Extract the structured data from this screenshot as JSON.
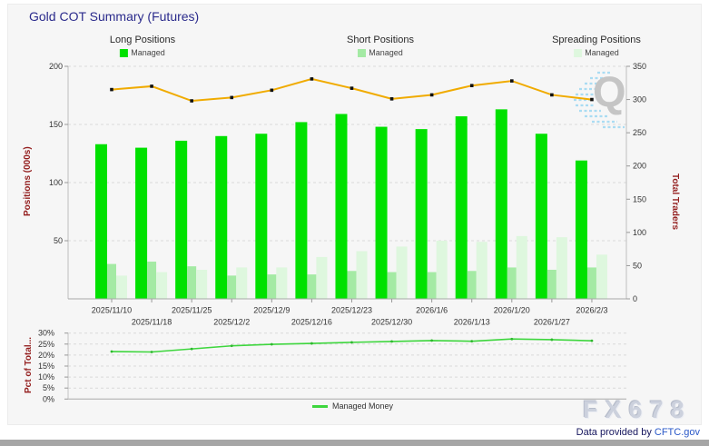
{
  "header": {
    "title": "Gold COT Summary (Futures)"
  },
  "legends": {
    "long": {
      "title": "Long Positions",
      "item": "Managed",
      "color": "#00e100"
    },
    "short": {
      "title": "Short Positions",
      "item": "Managed",
      "color": "#a4eaa4"
    },
    "spreading": {
      "title": "Spreading Positions",
      "item": "Managed",
      "color": "#def7de"
    }
  },
  "axes": {
    "left_label": "Positions (000s)",
    "right_label": "Total Traders",
    "pct_label": "Pct of Total..."
  },
  "chart_data": [
    {
      "type": "bar",
      "title": "Gold COT Summary (Futures)",
      "categories": [
        "2025/11/10",
        "2025/11/18",
        "2025/11/25",
        "2025/12/2",
        "2025/12/9",
        "2025/12/16",
        "2025/12/23",
        "2025/12/30",
        "2026/1/6",
        "2026/1/13",
        "2026/1/20",
        "2026/1/27",
        "2026/2/3"
      ],
      "series": [
        {
          "name": "Long Positions Managed",
          "type": "bar",
          "axis": "left",
          "color": "#00e100",
          "values": [
            133,
            130,
            136,
            140,
            142,
            152,
            159,
            148,
            146,
            157,
            163,
            142,
            119
          ]
        },
        {
          "name": "Short Positions Managed",
          "type": "bar",
          "axis": "left",
          "color": "#a4eaa4",
          "values": [
            30,
            32,
            28,
            20,
            21,
            21,
            24,
            23,
            23,
            24,
            27,
            25,
            27
          ]
        },
        {
          "name": "Spreading Positions Managed",
          "type": "bar",
          "axis": "left",
          "color": "#def7de",
          "values": [
            20,
            23,
            25,
            27,
            27,
            36,
            41,
            45,
            50,
            49,
            54,
            53,
            38
          ]
        },
        {
          "name": "Total Traders",
          "type": "line",
          "axis": "right",
          "color": "#f0ab00",
          "values": [
            315,
            320,
            298,
            303,
            314,
            331,
            317,
            301,
            307,
            321,
            328,
            307,
            300
          ]
        }
      ],
      "ylabel": "Positions (000s)",
      "ylim": [
        0,
        200
      ],
      "left_ticks": [
        50,
        100,
        150,
        200
      ],
      "y2label": "Total Traders",
      "y2lim": [
        0,
        350
      ],
      "right_ticks": [
        0,
        50,
        100,
        150,
        200,
        250,
        300,
        350
      ],
      "grid": "horizontal-dashed",
      "legend_position": "top"
    },
    {
      "type": "line",
      "categories": [
        "2025/11/10",
        "2025/11/18",
        "2025/11/25",
        "2025/12/2",
        "2025/12/9",
        "2025/12/16",
        "2025/12/23",
        "2025/12/30",
        "2026/1/6",
        "2026/1/13",
        "2026/1/20",
        "2026/1/27",
        "2026/2/3"
      ],
      "series": [
        {
          "name": "Managed Money",
          "type": "line",
          "color": "#3ed63e",
          "values": [
            21.6,
            21.4,
            22.8,
            24.2,
            24.9,
            25.3,
            25.8,
            26.2,
            26.6,
            26.3,
            27.3,
            27.0,
            26.5
          ]
        }
      ],
      "ylabel": "Pct of Total...",
      "ylim": [
        0,
        30
      ],
      "ticks": [
        0,
        5,
        10,
        15,
        20,
        25,
        30
      ],
      "tick_suffix": "%",
      "grid": "horizontal-dashed",
      "legend_position": "bottom"
    }
  ],
  "footer": {
    "legend_pct": "Managed Money",
    "watermark": "FX678",
    "watermark_q": "Q",
    "credit_prefix": "Data provided by ",
    "credit_link": "CFTC.gov"
  }
}
